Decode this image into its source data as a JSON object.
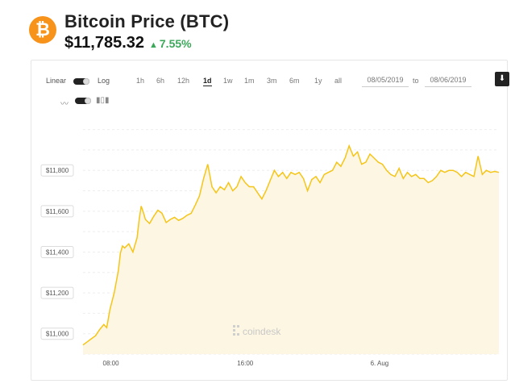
{
  "header": {
    "logo_glyph": "₿",
    "title": "Bitcoin Price (BTC)",
    "price": "$11,785.32",
    "change": "7.55%",
    "change_arrow": "▲",
    "logo_color": "#f7931a",
    "change_color": "#3ca85a"
  },
  "controls": {
    "scale_linear": "Linear",
    "scale_log": "Log",
    "ranges": [
      "1h",
      "6h",
      "12h",
      "1d",
      "1w",
      "1m",
      "3m",
      "6m",
      "1y",
      "all"
    ],
    "active_range": "1d",
    "date_from": "08/05/2019",
    "to_label": "to",
    "date_to": "08/06/2019",
    "download_icon": "download-icon",
    "line_icon": "line-chart-icon",
    "candle_icon": "candlestick-icon"
  },
  "watermark": "coindesk",
  "chart_data": {
    "type": "area",
    "title": "",
    "xlabel": "",
    "ylabel": "",
    "line_color": "#f5c518",
    "fill_color": "#fdf6e3",
    "grid": true,
    "yticks": [
      11000,
      11200,
      11400,
      11600,
      11800
    ],
    "ytick_labels": [
      "$11,000",
      "$11,200",
      "$11,400",
      "$11,600",
      "$11,800"
    ],
    "ylim": [
      10900,
      12030
    ],
    "xlim": [
      0,
      1
    ],
    "xticks": [
      0.067,
      0.39,
      0.713
    ],
    "xtick_labels": [
      "08:00",
      "16:00",
      "6. Aug"
    ],
    "x": [
      0.0,
      0.01,
      0.02,
      0.03,
      0.04,
      0.05,
      0.057,
      0.065,
      0.075,
      0.085,
      0.09,
      0.095,
      0.1,
      0.11,
      0.12,
      0.13,
      0.135,
      0.14,
      0.145,
      0.15,
      0.16,
      0.17,
      0.18,
      0.19,
      0.2,
      0.21,
      0.22,
      0.23,
      0.24,
      0.25,
      0.26,
      0.27,
      0.28,
      0.29,
      0.3,
      0.31,
      0.32,
      0.33,
      0.34,
      0.35,
      0.36,
      0.37,
      0.38,
      0.39,
      0.4,
      0.41,
      0.42,
      0.43,
      0.44,
      0.45,
      0.46,
      0.47,
      0.48,
      0.49,
      0.5,
      0.51,
      0.52,
      0.53,
      0.54,
      0.55,
      0.56,
      0.57,
      0.58,
      0.59,
      0.6,
      0.61,
      0.62,
      0.63,
      0.64,
      0.65,
      0.66,
      0.67,
      0.68,
      0.69,
      0.7,
      0.71,
      0.72,
      0.73,
      0.74,
      0.75,
      0.76,
      0.77,
      0.78,
      0.79,
      0.8,
      0.81,
      0.82,
      0.83,
      0.84,
      0.85,
      0.86,
      0.87,
      0.88,
      0.89,
      0.9,
      0.91,
      0.92,
      0.93,
      0.94,
      0.95,
      0.96,
      0.97,
      0.98,
      0.99,
      1.0
    ],
    "y": [
      10945,
      10960,
      10975,
      10990,
      11020,
      11045,
      11030,
      11120,
      11200,
      11310,
      11395,
      11430,
      11420,
      11440,
      11400,
      11470,
      11560,
      11625,
      11595,
      11560,
      11540,
      11575,
      11605,
      11590,
      11545,
      11560,
      11570,
      11555,
      11565,
      11580,
      11590,
      11630,
      11675,
      11760,
      11830,
      11720,
      11690,
      11720,
      11705,
      11740,
      11700,
      11720,
      11770,
      11740,
      11720,
      11720,
      11690,
      11660,
      11700,
      11750,
      11800,
      11770,
      11790,
      11760,
      11790,
      11780,
      11790,
      11760,
      11700,
      11755,
      11770,
      11740,
      11780,
      11790,
      11800,
      11840,
      11820,
      11860,
      11920,
      11870,
      11890,
      11830,
      11840,
      11880,
      11860,
      11840,
      11830,
      11800,
      11780,
      11770,
      11810,
      11760,
      11790,
      11770,
      11780,
      11760,
      11760,
      11740,
      11750,
      11770,
      11800,
      11790,
      11800,
      11800,
      11790,
      11770,
      11790,
      11780,
      11770,
      11870,
      11780,
      11800,
      11790,
      11795,
      11790
    ]
  }
}
